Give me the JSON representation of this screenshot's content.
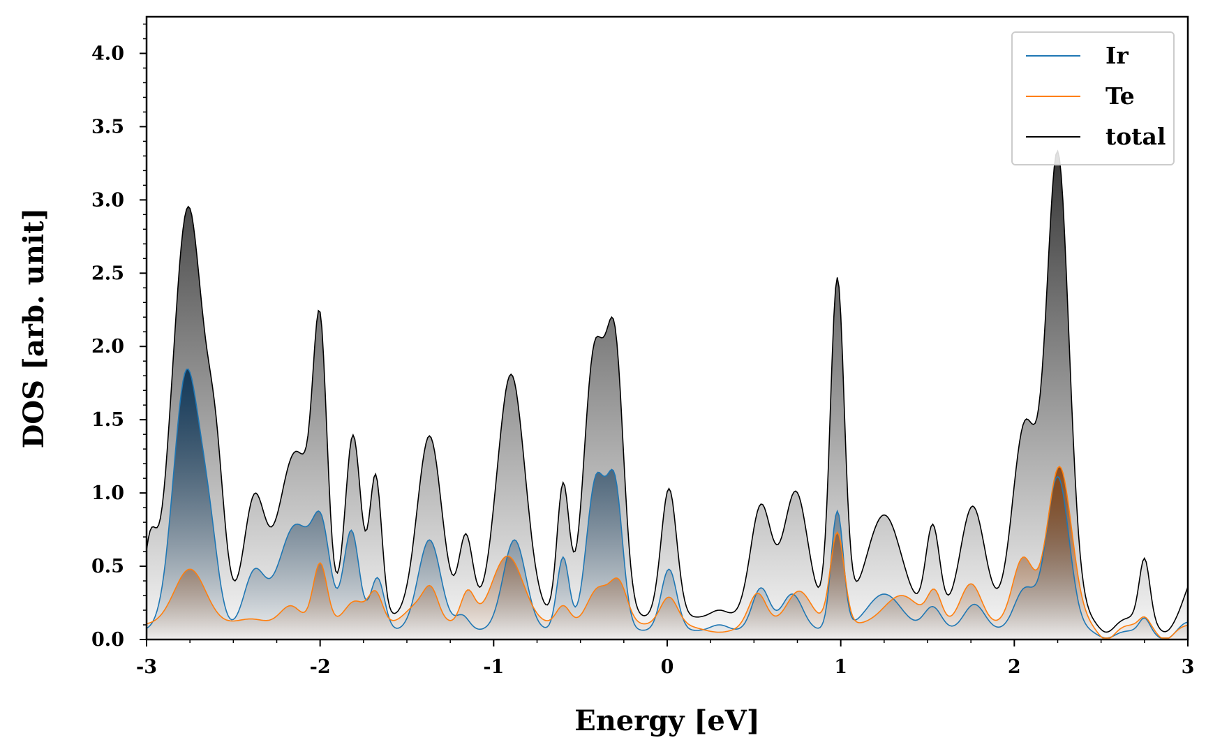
{
  "chart_data": {
    "type": "area",
    "title": "",
    "xlabel": "Energy [eV]",
    "ylabel": "DOS [arb. unit]",
    "xlim": [
      -3,
      3
    ],
    "ylim": [
      0,
      4.25
    ],
    "xticks": [
      -3,
      -2,
      -1,
      0,
      1,
      2,
      3
    ],
    "xtick_labels": [
      "-3",
      "-2",
      "-1",
      "0",
      "1",
      "2",
      "3"
    ],
    "yticks": [
      0,
      0.5,
      1,
      1.5,
      2,
      2.5,
      3,
      3.5,
      4
    ],
    "ytick_labels": [
      "0.0",
      "0.5",
      "1.0",
      "1.5",
      "2.0",
      "2.5",
      "3.0",
      "3.5",
      "4.0"
    ],
    "legend_position": "top-right",
    "series": [
      {
        "name": "Ir",
        "color": "#1f77b4",
        "fill_dark": "#0d3557",
        "baseline": 0.06,
        "peaks": [
          [
            -2.77,
            1.75,
            0.075
          ],
          [
            -2.64,
            0.55,
            0.055
          ],
          [
            -2.38,
            0.38,
            0.06
          ],
          [
            -2.14,
            0.72,
            0.1
          ],
          [
            -1.99,
            0.55,
            0.05
          ],
          [
            -1.82,
            0.68,
            0.045
          ],
          [
            -1.67,
            0.36,
            0.04
          ],
          [
            -1.37,
            0.62,
            0.065
          ],
          [
            -1.18,
            0.1,
            0.04
          ],
          [
            -0.88,
            0.62,
            0.065
          ],
          [
            -0.6,
            0.5,
            0.035
          ],
          [
            -0.41,
            1.02,
            0.055
          ],
          [
            -0.3,
            0.92,
            0.045
          ],
          [
            0.01,
            0.42,
            0.045
          ],
          [
            0.3,
            0.04,
            0.05
          ],
          [
            0.54,
            0.29,
            0.05
          ],
          [
            0.72,
            0.25,
            0.06
          ],
          [
            0.98,
            0.81,
            0.035
          ],
          [
            1.25,
            0.25,
            0.1
          ],
          [
            1.53,
            0.16,
            0.05
          ],
          [
            1.77,
            0.18,
            0.06
          ],
          [
            2.06,
            0.28,
            0.06
          ],
          [
            2.25,
            1.05,
            0.065
          ],
          [
            2.75,
            0.09,
            0.03
          ],
          [
            3.0,
            0.06,
            0.05
          ]
        ],
        "drops": [
          [
            2.53,
            0.05,
            0.05
          ],
          [
            2.87,
            0.06,
            0.05
          ]
        ]
      },
      {
        "name": "Te",
        "color": "#ff7f0e",
        "fill_dark": "#8a4512",
        "baseline": 0.1,
        "peaks": [
          [
            -2.75,
            0.38,
            0.09
          ],
          [
            -2.4,
            0.04,
            0.08
          ],
          [
            -2.17,
            0.13,
            0.06
          ],
          [
            -2.0,
            0.42,
            0.04
          ],
          [
            -1.8,
            0.16,
            0.06
          ],
          [
            -1.68,
            0.21,
            0.04
          ],
          [
            -1.42,
            0.15,
            0.08
          ],
          [
            -1.36,
            0.15,
            0.04
          ],
          [
            -1.15,
            0.22,
            0.04
          ],
          [
            -0.92,
            0.47,
            0.09
          ],
          [
            -0.6,
            0.13,
            0.04
          ],
          [
            -0.4,
            0.24,
            0.06
          ],
          [
            -0.28,
            0.28,
            0.05
          ],
          [
            0.01,
            0.19,
            0.05
          ],
          [
            0.3,
            -0.05,
            0.1
          ],
          [
            0.52,
            0.22,
            0.05
          ],
          [
            0.76,
            0.23,
            0.07
          ],
          [
            0.98,
            0.63,
            0.04
          ],
          [
            1.35,
            0.2,
            0.1
          ],
          [
            1.54,
            0.21,
            0.04
          ],
          [
            1.75,
            0.28,
            0.06
          ],
          [
            2.05,
            0.45,
            0.06
          ],
          [
            2.26,
            1.08,
            0.07
          ],
          [
            2.75,
            0.06,
            0.03
          ]
        ],
        "drops": [
          [
            2.53,
            0.1,
            0.05
          ],
          [
            2.87,
            0.1,
            0.05
          ]
        ]
      },
      {
        "name": "total",
        "color": "#000000",
        "fill_dark": "#2a2a2a",
        "baseline": 0.15,
        "peaks": [
          [
            -2.98,
            0.45,
            0.035
          ],
          [
            -2.76,
            2.8,
            0.09
          ],
          [
            -2.6,
            0.8,
            0.05
          ],
          [
            -2.38,
            0.78,
            0.06
          ],
          [
            -2.14,
            1.13,
            0.1
          ],
          [
            -2.0,
            1.66,
            0.04
          ],
          [
            -1.81,
            1.24,
            0.045
          ],
          [
            -1.68,
            0.96,
            0.035
          ],
          [
            -1.37,
            1.24,
            0.07
          ],
          [
            -1.16,
            0.55,
            0.04
          ],
          [
            -0.9,
            1.66,
            0.08
          ],
          [
            -0.6,
            0.9,
            0.035
          ],
          [
            -0.42,
            1.78,
            0.06
          ],
          [
            -0.3,
            1.74,
            0.05
          ],
          [
            0.01,
            0.88,
            0.045
          ],
          [
            0.3,
            0.05,
            0.05
          ],
          [
            0.54,
            0.76,
            0.06
          ],
          [
            0.74,
            0.86,
            0.07
          ],
          [
            0.98,
            2.3,
            0.04
          ],
          [
            1.25,
            0.7,
            0.1
          ],
          [
            1.53,
            0.62,
            0.04
          ],
          [
            1.76,
            0.76,
            0.07
          ],
          [
            2.06,
            1.3,
            0.07
          ],
          [
            2.25,
            3.15,
            0.065
          ],
          [
            2.75,
            0.41,
            0.03
          ],
          [
            3.05,
            0.3,
            0.06
          ]
        ],
        "drops": [
          [
            2.53,
            0.1,
            0.05
          ],
          [
            2.87,
            0.1,
            0.05
          ]
        ]
      }
    ]
  }
}
